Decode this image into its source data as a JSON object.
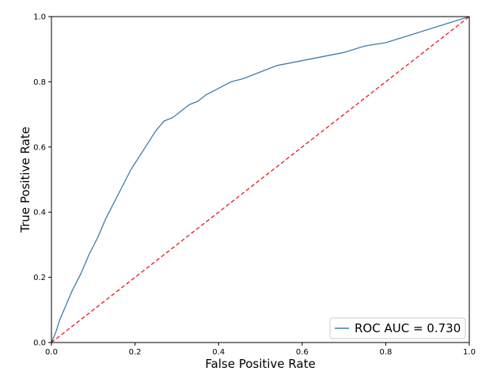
{
  "chart_data": {
    "type": "line",
    "xlabel": "False Positive Rate",
    "ylabel": "True Positive Rate",
    "xlim": [
      0.0,
      1.0
    ],
    "ylim": [
      0.0,
      1.0
    ],
    "x_ticks": [
      "0.0",
      "0.2",
      "0.4",
      "0.6",
      "0.8",
      "1.0"
    ],
    "y_ticks": [
      "0.0",
      "0.2",
      "0.4",
      "0.6",
      "0.8",
      "1.0"
    ],
    "grid": false,
    "legend_position": "bottom-right",
    "series": [
      {
        "name": "ROC AUC = 0.730",
        "color": "#3f7fa6",
        "style": "solid",
        "x": [
          0.0,
          0.01,
          0.02,
          0.03,
          0.05,
          0.07,
          0.09,
          0.11,
          0.13,
          0.15,
          0.17,
          0.19,
          0.21,
          0.23,
          0.25,
          0.27,
          0.29,
          0.31,
          0.33,
          0.35,
          0.37,
          0.4,
          0.43,
          0.46,
          0.5,
          0.54,
          0.58,
          0.62,
          0.66,
          0.7,
          0.75,
          0.8,
          0.85,
          0.9,
          0.95,
          1.0
        ],
        "y": [
          0.0,
          0.03,
          0.07,
          0.1,
          0.16,
          0.21,
          0.27,
          0.32,
          0.38,
          0.43,
          0.48,
          0.53,
          0.57,
          0.61,
          0.65,
          0.68,
          0.69,
          0.71,
          0.73,
          0.74,
          0.76,
          0.78,
          0.8,
          0.81,
          0.83,
          0.85,
          0.86,
          0.87,
          0.88,
          0.89,
          0.91,
          0.92,
          0.94,
          0.96,
          0.98,
          1.0
        ]
      },
      {
        "color": "#e41a1c",
        "style": "dashed",
        "x": [
          0.0,
          1.0
        ],
        "y": [
          0.0,
          1.0
        ]
      }
    ]
  }
}
